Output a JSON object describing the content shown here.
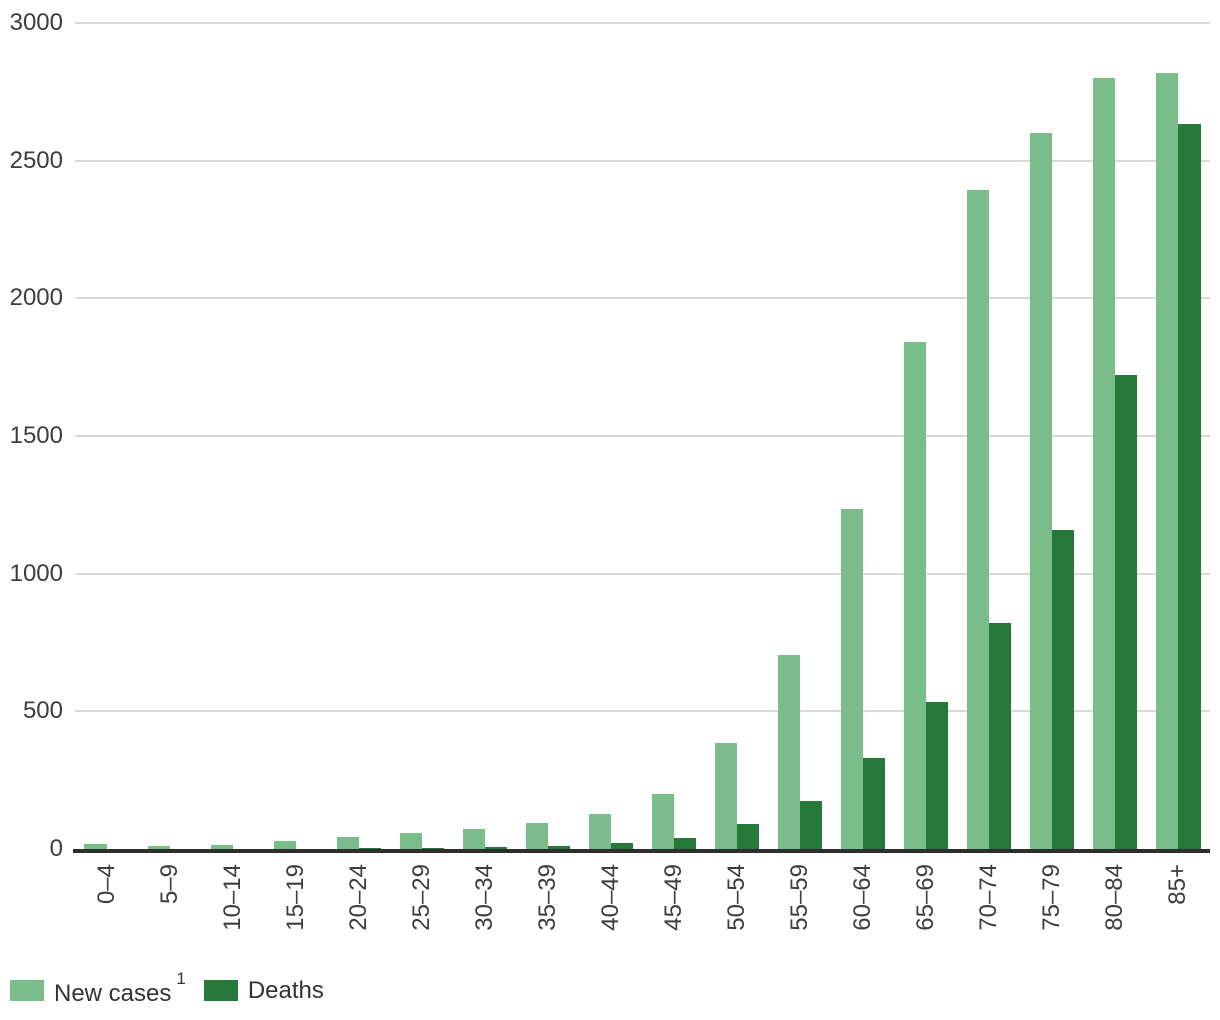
{
  "chart_data": {
    "type": "bar",
    "bar_grouping": "grouped",
    "title": "",
    "xlabel": "",
    "ylabel": "",
    "categories": [
      "0–4",
      "5–9",
      "10–14",
      "15–19",
      "20–24",
      "25–29",
      "30–34",
      "35–39",
      "40–44",
      "45–49",
      "50–54",
      "55–59",
      "60–64",
      "65–69",
      "70–74",
      "75–79",
      "80–84",
      "85+"
    ],
    "series": [
      {
        "name": "New cases",
        "superscript": "1",
        "color": "#7abc8a",
        "values": [
          20,
          12,
          16,
          28,
          42,
          57,
          72,
          95,
          127,
          200,
          385,
          705,
          1235,
          1840,
          2395,
          2600,
          2800,
          2820
        ]
      },
      {
        "name": "Deaths",
        "superscript": "",
        "color": "#27793b",
        "values": [
          0,
          0,
          0,
          1,
          2,
          3,
          7,
          12,
          22,
          40,
          90,
          175,
          330,
          535,
          820,
          1160,
          1720,
          2635
        ]
      }
    ],
    "ylim": [
      0,
      3000
    ],
    "ytick_step": 500,
    "ytick_labels": [
      "0",
      "500",
      "1000",
      "1500",
      "2000",
      "2500",
      "3000"
    ],
    "grid": true,
    "legend_position": "bottom-left"
  },
  "legend": {
    "items": [
      {
        "label": "New cases",
        "superscript": "1",
        "color": "#7abc8a"
      },
      {
        "label": "Deaths",
        "superscript": "",
        "color": "#27793b"
      }
    ]
  },
  "colors": {
    "background": "#ffffff",
    "gridline": "#d9d9d9",
    "axis_line": "#2e2e2e",
    "tick_label": "#3d3d3d",
    "new_cases": "#7abc8a",
    "deaths": "#27793b"
  }
}
